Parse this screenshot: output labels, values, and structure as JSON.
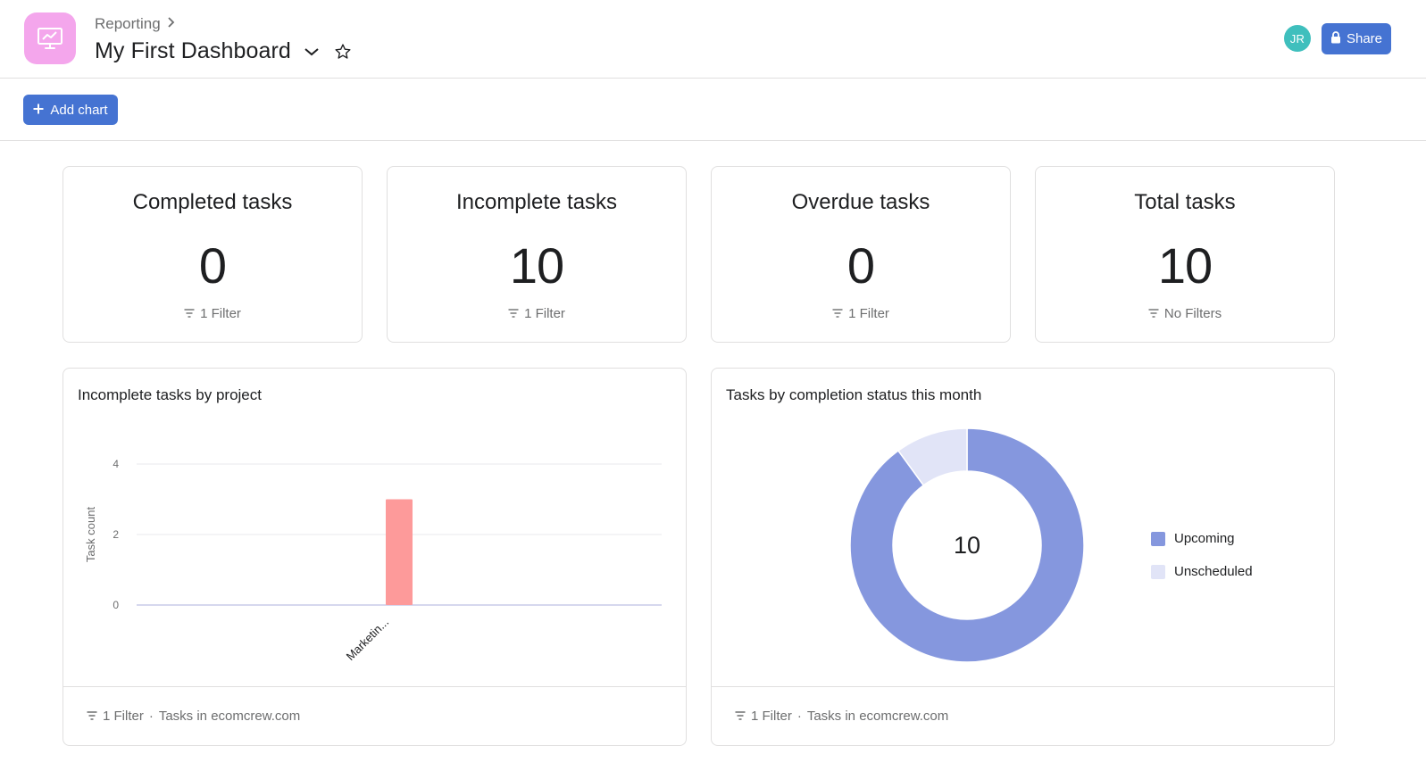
{
  "header": {
    "breadcrumb": "Reporting",
    "title": "My First Dashboard",
    "avatar_initials": "JR",
    "share_label": "Share"
  },
  "toolbar": {
    "add_chart_label": "Add chart"
  },
  "stats": [
    {
      "title": "Completed tasks",
      "value": "0",
      "filter": "1 Filter"
    },
    {
      "title": "Incomplete tasks",
      "value": "10",
      "filter": "1 Filter"
    },
    {
      "title": "Overdue tasks",
      "value": "0",
      "filter": "1 Filter"
    },
    {
      "title": "Total tasks",
      "value": "10",
      "filter": "No Filters"
    }
  ],
  "charts": {
    "bar": {
      "title": "Incomplete tasks by project",
      "footer_filter": "1 Filter",
      "footer_source": "Tasks in ecomcrew.com"
    },
    "donut": {
      "title": "Tasks by completion status this month",
      "center_label": "10",
      "footer_filter": "1 Filter",
      "footer_source": "Tasks in ecomcrew.com"
    }
  },
  "colors": {
    "accent": "#4573d2",
    "bar": "#fd9a9a",
    "upcoming": "#8597de",
    "unscheduled": "#e1e4f7",
    "app_icon": "#f4a6ec"
  },
  "chart_data": [
    {
      "type": "bar",
      "title": "Incomplete tasks by project",
      "categories": [
        "Marketin..."
      ],
      "values": [
        3
      ],
      "ylabel": "Task count",
      "xlabel": "",
      "ylim": [
        0,
        4
      ],
      "yticks": [
        0,
        2,
        4
      ],
      "grid": true
    },
    {
      "type": "pie",
      "title": "Tasks by completion status this month",
      "categories": [
        "Upcoming",
        "Unscheduled"
      ],
      "values": [
        9,
        1
      ],
      "center_total": 10,
      "legend": "right"
    }
  ]
}
